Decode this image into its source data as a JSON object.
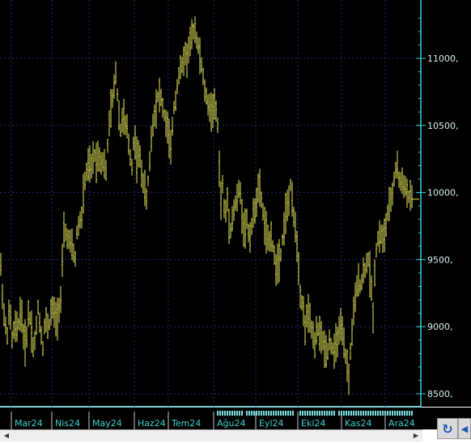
{
  "chart_data": {
    "type": "bar",
    "subtype": "ohlc",
    "title": "",
    "xlabel": "",
    "ylabel": "",
    "x_labels": [
      "Mar24",
      "Nis24",
      "May24",
      "Haz24",
      "Tem24",
      "Ağu24",
      "Eyl24",
      "Eki24",
      "Kas24",
      "Ara24"
    ],
    "y_ticks": [
      "8500,",
      "9000,",
      "9500,",
      "10000,",
      "10500,",
      "11000,"
    ],
    "ylim": [
      8450,
      11350
    ],
    "last_value": 9950,
    "grid": true,
    "colors": {
      "background": "#000000",
      "bars": "#e8e85a",
      "grid": "#1f2a70",
      "axis": "#3ccfcf"
    },
    "anchors": [
      [
        1,
        9450
      ],
      [
        4,
        9150
      ],
      [
        6,
        9020
      ],
      [
        9,
        8950
      ],
      [
        12,
        9150
      ],
      [
        15,
        8900
      ],
      [
        18,
        9000
      ],
      [
        21,
        8980
      ],
      [
        24,
        9050
      ],
      [
        26,
        9150
      ],
      [
        29,
        8930
      ],
      [
        32,
        8850
      ],
      [
        35,
        9100
      ],
      [
        38,
        9050
      ],
      [
        41,
        8850
      ],
      [
        44,
        8920
      ],
      [
        47,
        9150
      ],
      [
        50,
        8980
      ],
      [
        53,
        8850
      ],
      [
        56,
        9080
      ],
      [
        58,
        9000
      ],
      [
        61,
        9020
      ],
      [
        64,
        9150
      ],
      [
        67,
        9100
      ],
      [
        70,
        9040
      ],
      [
        73,
        9150
      ],
      [
        76,
        9230
      ],
      [
        78,
        9700
      ],
      [
        81,
        9700
      ],
      [
        84,
        9650
      ],
      [
        87,
        9620
      ],
      [
        90,
        9580
      ],
      [
        93,
        9500
      ],
      [
        95,
        9700
      ],
      [
        98,
        9780
      ],
      [
        101,
        9820
      ],
      [
        104,
        10050
      ],
      [
        107,
        10150
      ],
      [
        110,
        10210
      ],
      [
        113,
        10180
      ],
      [
        116,
        10300
      ],
      [
        119,
        10240
      ],
      [
        122,
        10280
      ],
      [
        125,
        10230
      ],
      [
        128,
        10240
      ],
      [
        131,
        10150
      ],
      [
        134,
        10450
      ],
      [
        137,
        10620
      ],
      [
        140,
        10720
      ],
      [
        143,
        10900
      ],
      [
        146,
        10650
      ],
      [
        149,
        10460
      ],
      [
        152,
        10600
      ],
      [
        154,
        10500
      ],
      [
        157,
        10470
      ],
      [
        160,
        10300
      ],
      [
        163,
        10200
      ],
      [
        166,
        10450
      ],
      [
        169,
        10250
      ],
      [
        172,
        10300
      ],
      [
        175,
        10150
      ],
      [
        178,
        10050
      ],
      [
        181,
        9950
      ],
      [
        184,
        10150
      ],
      [
        187,
        10400
      ],
      [
        190,
        10560
      ],
      [
        193,
        10650
      ],
      [
        196,
        10750
      ],
      [
        199,
        10700
      ],
      [
        202,
        10600
      ],
      [
        205,
        10520
      ],
      [
        208,
        10450
      ],
      [
        211,
        10300
      ],
      [
        214,
        10600
      ],
      [
        217,
        10700
      ],
      [
        220,
        10850
      ],
      [
        223,
        10920
      ],
      [
        226,
        10950
      ],
      [
        228,
        11050
      ],
      [
        231,
        11000
      ],
      [
        234,
        11100
      ],
      [
        237,
        11150
      ],
      [
        240,
        11250
      ],
      [
        243,
        11150
      ],
      [
        246,
        11050
      ],
      [
        249,
        10950
      ],
      [
        252,
        10800
      ],
      [
        255,
        10700
      ],
      [
        258,
        10650
      ],
      [
        261,
        10600
      ],
      [
        264,
        10650
      ],
      [
        267,
        10600
      ],
      [
        270,
        10450
      ],
      [
        272,
        9900
      ],
      [
        275,
        10050
      ],
      [
        278,
        9800
      ],
      [
        281,
        9950
      ],
      [
        284,
        9700
      ],
      [
        287,
        9800
      ],
      [
        290,
        9900
      ],
      [
        293,
        9950
      ],
      [
        296,
        10050
      ],
      [
        299,
        9850
      ],
      [
        302,
        9700
      ],
      [
        305,
        9800
      ],
      [
        308,
        9650
      ],
      [
        311,
        9750
      ],
      [
        314,
        9850
      ],
      [
        317,
        9950
      ],
      [
        320,
        10050
      ],
      [
        323,
        9950
      ],
      [
        326,
        9800
      ],
      [
        329,
        9700
      ],
      [
        332,
        9600
      ],
      [
        335,
        9700
      ],
      [
        338,
        9550
      ],
      [
        341,
        9450
      ],
      [
        344,
        9500
      ],
      [
        347,
        9550
      ],
      [
        350,
        9700
      ],
      [
        353,
        9850
      ],
      [
        356,
        9900
      ],
      [
        359,
        10050
      ],
      [
        362,
        9850
      ],
      [
        365,
        9750
      ],
      [
        368,
        9550
      ],
      [
        371,
        9250
      ],
      [
        374,
        9150
      ],
      [
        377,
        9000
      ],
      [
        380,
        9100
      ],
      [
        383,
        9050
      ],
      [
        386,
        8950
      ],
      [
        389,
        8850
      ],
      [
        392,
        9000
      ],
      [
        395,
        8950
      ],
      [
        398,
        8900
      ],
      [
        401,
        8850
      ],
      [
        404,
        8800
      ],
      [
        407,
        8900
      ],
      [
        410,
        8850
      ],
      [
        413,
        8800
      ],
      [
        416,
        8900
      ],
      [
        419,
        8950
      ],
      [
        422,
        9000
      ],
      [
        425,
        8850
      ],
      [
        428,
        8750
      ],
      [
        431,
        8620
      ],
      [
        434,
        8900
      ],
      [
        437,
        9100
      ],
      [
        440,
        9250
      ],
      [
        443,
        9350
      ],
      [
        446,
        9300
      ],
      [
        449,
        9400
      ],
      [
        452,
        9450
      ],
      [
        455,
        9500
      ],
      [
        458,
        9350
      ],
      [
        461,
        9100
      ],
      [
        464,
        9550
      ],
      [
        467,
        9650
      ],
      [
        470,
        9700
      ],
      [
        473,
        9650
      ],
      [
        476,
        9700
      ],
      [
        479,
        9850
      ],
      [
        482,
        9900
      ],
      [
        485,
        10000
      ],
      [
        488,
        10150
      ],
      [
        491,
        10200
      ],
      [
        494,
        10050
      ],
      [
        497,
        10100
      ],
      [
        500,
        10050
      ],
      [
        503,
        10000
      ],
      [
        506,
        9950
      ],
      [
        509,
        9970
      ]
    ]
  }
}
